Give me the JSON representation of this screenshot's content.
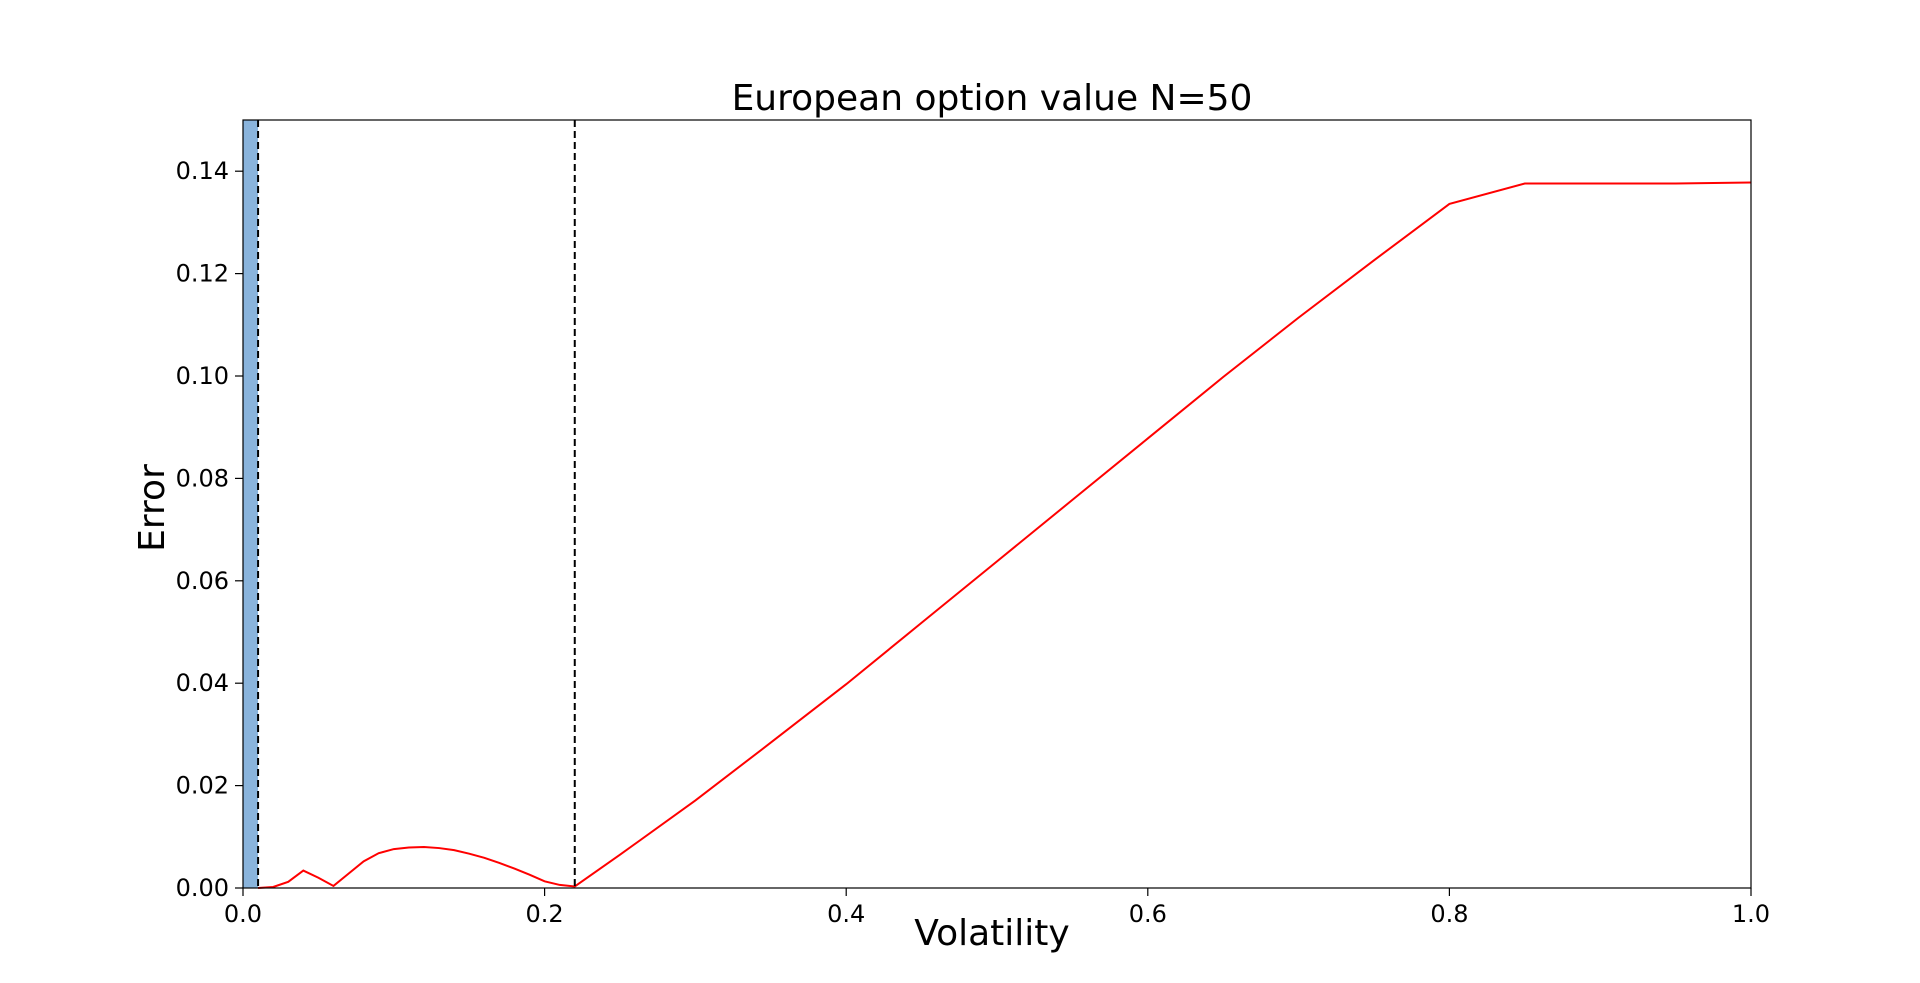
{
  "chart_data": {
    "type": "line",
    "title": "European option value N=50",
    "xlabel": "Volatility",
    "ylabel": "Error",
    "xlim": [
      0.0,
      1.0
    ],
    "ylim": [
      0.0,
      0.15
    ],
    "grid": false,
    "x_ticks": [
      0.0,
      0.2,
      0.4,
      0.6,
      0.8,
      1.0
    ],
    "x_tick_labels": [
      "0.0",
      "0.2",
      "0.4",
      "0.6",
      "0.8",
      "1.0"
    ],
    "y_ticks": [
      0.0,
      0.02,
      0.04,
      0.06,
      0.08,
      0.1,
      0.12,
      0.14
    ],
    "y_tick_labels": [
      "0.00",
      "0.02",
      "0.04",
      "0.06",
      "0.08",
      "0.10",
      "0.12",
      "0.14"
    ],
    "shaded_region": {
      "x_start": 0.0,
      "x_end": 0.01,
      "color": "#8ab4dc"
    },
    "vertical_lines": [
      {
        "x": 0.01,
        "style": "dashed",
        "color": "#000000"
      },
      {
        "x": 0.22,
        "style": "dashed",
        "color": "#000000"
      }
    ],
    "series": [
      {
        "color": "#ff0000",
        "x": [
          0.01,
          0.02,
          0.03,
          0.04,
          0.05,
          0.06,
          0.07,
          0.08,
          0.09,
          0.1,
          0.11,
          0.12,
          0.13,
          0.14,
          0.15,
          0.16,
          0.17,
          0.18,
          0.19,
          0.2,
          0.21,
          0.22,
          0.25,
          0.3,
          0.35,
          0.4,
          0.45,
          0.5,
          0.55,
          0.6,
          0.65,
          0.7,
          0.75,
          0.8,
          0.85,
          0.9,
          0.95,
          1.0
        ],
        "y": [
          0.0,
          0.0002,
          0.0012,
          0.0034,
          0.002,
          0.0004,
          0.0028,
          0.0052,
          0.0068,
          0.0076,
          0.0079,
          0.008,
          0.0078,
          0.0074,
          0.0067,
          0.0059,
          0.0049,
          0.0038,
          0.0026,
          0.0013,
          0.0006,
          0.0003,
          0.0065,
          0.0171,
          0.0284,
          0.0398,
          0.0518,
          0.0638,
          0.0758,
          0.0878,
          0.0998,
          0.1114,
          0.1226,
          0.1336,
          0.1376,
          0.1376,
          0.1376,
          0.1378
        ]
      }
    ]
  }
}
